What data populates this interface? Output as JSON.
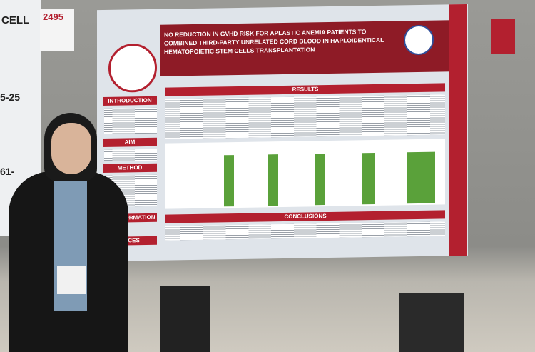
{
  "board_number": "2495",
  "neighbor_poster": {
    "fragments": [
      "CELL",
      "5-25",
      "61-"
    ]
  },
  "poster": {
    "title": "NO REDUCTION IN GVHD RISK FOR APLASTIC ANEMIA PATIENTS TO COMBINED THIRD-PARTY UNRELATED CORD BLOOD IN HAPLOIDENTICAL HEMATOPOIETIC STEM CELLS TRANSPLANTATION",
    "sections": {
      "introduction": "INTRODUCTION",
      "aim": "AIM",
      "method": "METHOD",
      "contact": "ICT INFORMATION",
      "references": "ENCES",
      "results": "RESULTS",
      "conclusions": "CONCLUSIONS"
    }
  }
}
